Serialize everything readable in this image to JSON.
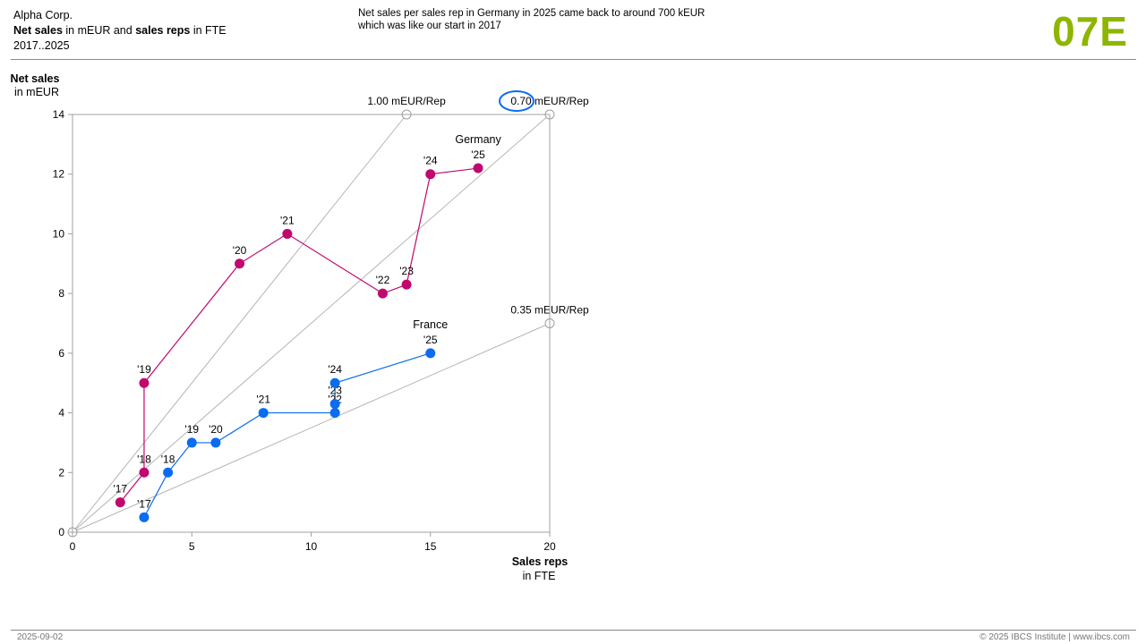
{
  "header": {
    "company": "Alpha Corp.",
    "measure_bold_1": "Net sales",
    "measure_text_1": " in mEUR and ",
    "measure_bold_2": "sales reps",
    "measure_text_2": " in FTE",
    "period": "2017..2025",
    "message_line_1": "Net sales per sales rep in Germany in 2025 came back to around 700 kEUR",
    "message_line_2": "which was like our start in 2017",
    "code": "07E"
  },
  "footer": {
    "date": "2025-09-02",
    "copyright": "© 2025 IBCS Institute | www.ibcs.com"
  },
  "colors": {
    "germany": "#c0086f",
    "france": "#0a6cf0",
    "reference": "#b4b4b4",
    "axis": "#a0a0a0",
    "highlight": "#0a6cf0",
    "code": "#8db600"
  },
  "chart_data": {
    "type": "scatter",
    "title": "",
    "ylabel": "Net sales",
    "ylabel_unit": "in mEUR",
    "xlabel": "Sales reps",
    "xlabel_unit": "in FTE",
    "xlim": [
      0,
      20
    ],
    "ylim": [
      0,
      14
    ],
    "x_ticks": [
      "0",
      "5",
      "10",
      "15",
      "20"
    ],
    "x_tick_values": [
      0,
      5,
      10,
      15,
      20
    ],
    "y_ticks": [
      "0",
      "2",
      "4",
      "6",
      "8",
      "10",
      "12",
      "14"
    ],
    "y_tick_values": [
      0,
      2,
      4,
      6,
      8,
      10,
      12,
      14
    ],
    "grid": false,
    "reference_lines": [
      {
        "label": "1.00 mEUR/Rep",
        "ratio": 1.0,
        "value_text": "1.00",
        "unit_text": " mEUR/Rep",
        "end": [
          14,
          14
        ]
      },
      {
        "label": "0.70 mEUR/Rep",
        "ratio": 0.7,
        "value_text": "0.70",
        "unit_text": " mEUR/Rep",
        "end": [
          20,
          14
        ],
        "highlighted": true
      },
      {
        "label": "0.35 mEUR/Rep",
        "ratio": 0.35,
        "value_text": "0.35",
        "unit_text": " mEUR/Rep",
        "end": [
          20,
          7
        ]
      }
    ],
    "series": [
      {
        "name": "Germany",
        "labels": [
          "'17",
          "'18",
          "'19",
          "'20",
          "'21",
          "'22",
          "'23",
          "'24",
          "'25"
        ],
        "x": [
          2,
          3,
          3,
          7,
          9,
          13,
          14,
          15,
          17
        ],
        "y": [
          1,
          2,
          5,
          9,
          10,
          8,
          8.3,
          12,
          12.2
        ]
      },
      {
        "name": "France",
        "labels": [
          "'17",
          "'18",
          "'19",
          "'20",
          "'21",
          "'22",
          "'23",
          "'24",
          "'25"
        ],
        "x": [
          3,
          4,
          5,
          6,
          8,
          11,
          11,
          11,
          15
        ],
        "y": [
          0.5,
          2,
          3,
          3,
          4,
          4,
          4.3,
          5,
          6
        ]
      }
    ]
  }
}
